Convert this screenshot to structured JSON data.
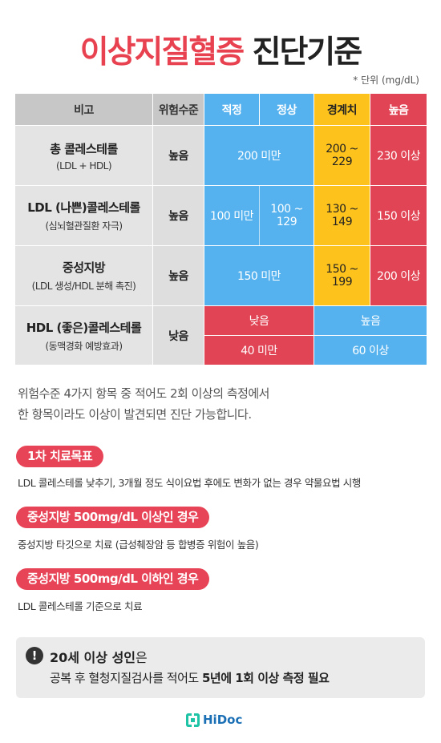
{
  "title": {
    "part1": "이상지질혈증",
    "part2": "진단기준"
  },
  "unit_note": "* 단위 (mg/dL)",
  "colors": {
    "blue": "#56b2ee",
    "yellow": "#fdc21c",
    "red": "#e14454",
    "accent": "#e8414f",
    "logo": "#1fc4a7"
  },
  "table": {
    "headers": {
      "compare": "비고",
      "risk": "위험수준",
      "optimal": "적정",
      "normal": "정상",
      "borderline": "경계치",
      "high": "높음"
    },
    "rows": [
      {
        "name": "총 콜레스테롤",
        "sub": "(LDL + HDL)",
        "risk": "높음",
        "normal_range": "200 미만",
        "borderline": "200 ~ 229",
        "high": "230 이상"
      },
      {
        "name": "LDL (나쁜)콜레스테롤",
        "sub": "(심뇌혈관질환 자극)",
        "risk": "높음",
        "optimal": "100 미만",
        "normal": "100 ~ 129",
        "borderline": "130 ~ 149",
        "high": "150 이상"
      },
      {
        "name": "중성지방",
        "sub": "(LDL 생성/HDL 분해 촉진)",
        "risk": "높음",
        "normal_range": "150 미만",
        "borderline": "150 ~ 199",
        "high": "200 이상"
      },
      {
        "name": "HDL (좋은)콜레스테롤",
        "sub": "(동맥경화 예방효과)",
        "risk": "낮음",
        "low_label": "낮음",
        "low_value": "40 미만",
        "high_label": "높음",
        "high_value": "60 이상"
      }
    ]
  },
  "description": {
    "line1": "위험수준 4가지 항목 중 적어도 2회 이상의 측정에서",
    "line2": "한 항목이라도 이상이 발견되면 진단 가능합니다."
  },
  "sections": [
    {
      "tag": "1차 치료목표",
      "text": "LDL 콜레스테롤 낮추기, 3개월 정도 식이요법 후에도 변화가 없는 경우 약물요법 시행"
    },
    {
      "tag": "중성지방 500mg/dL 이상인 경우",
      "text": "중성지방 타깃으로 치료 (급성췌장암 등 합병증 위험이 높음)"
    },
    {
      "tag": "중성지방 500mg/dL 이하인 경우",
      "text": "LDL 콜레스테롤 기준으로 치료"
    }
  ],
  "notice": {
    "icon": "!",
    "line1_bold": "20세 이상 성인",
    "line1_rest": "은",
    "line2_pre": "공복 후 혈청지질검사를 적어도 ",
    "line2_bold": "5년에 1회 이상 측정 필요"
  },
  "logo": {
    "text": "HiDoc",
    "icon": "hidoc-logo-icon"
  }
}
